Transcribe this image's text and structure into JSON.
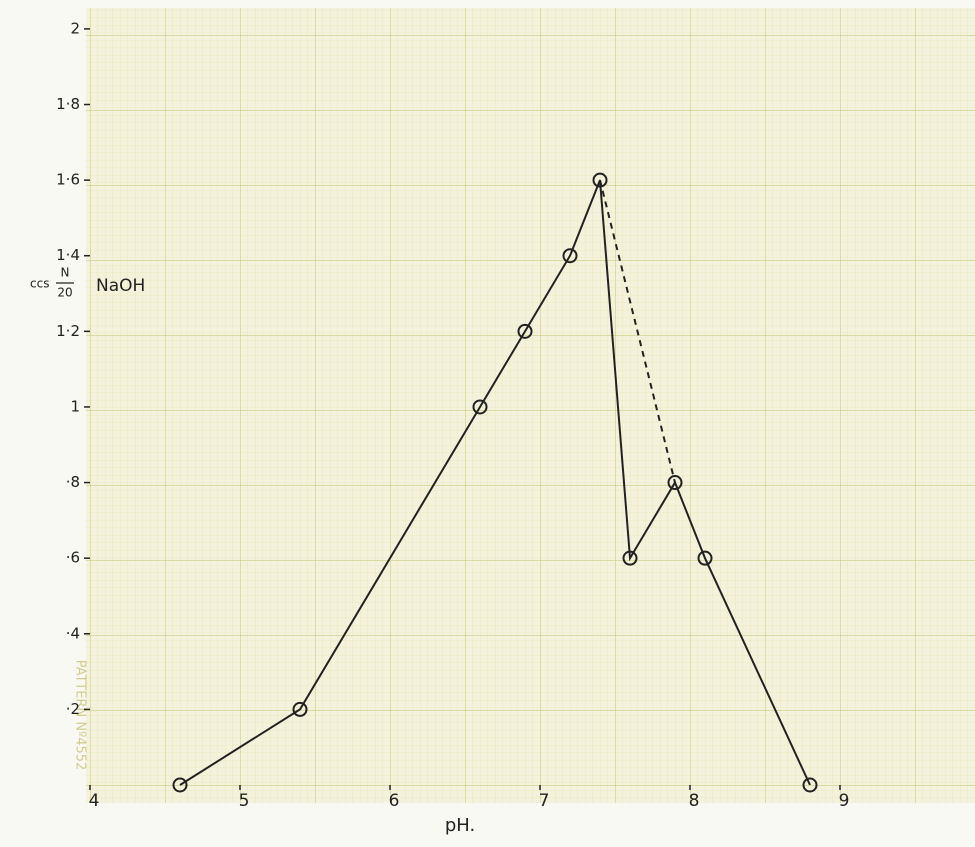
{
  "chart_data": {
    "type": "line",
    "x": [
      4.6,
      5.4,
      6.6,
      6.9,
      7.2,
      7.4,
      7.6,
      7.9,
      8.1,
      8.8
    ],
    "series": [
      {
        "values": [
          0,
          0.2,
          1.0,
          1.2,
          1.4,
          1.6,
          0.6,
          0.8,
          0.6,
          0
        ],
        "color": "#222222",
        "dash": false
      },
      {
        "x": [
          7.4,
          7.9
        ],
        "values": [
          1.6,
          0.8
        ],
        "color": "#222222",
        "dash": true
      }
    ],
    "xlabel": "pH.",
    "ylabel": {
      "prefix": "ccs",
      "numerator": "N",
      "denominator": "20",
      "unit": "NaOH"
    },
    "paper_mark": "PATTERN Nº4552",
    "xlim": [
      4,
      9.9
    ],
    "ylim": [
      0,
      2.05
    ],
    "xticks": [
      4,
      5,
      6,
      7,
      8,
      9
    ],
    "yticks": [
      {
        "value": 0.2,
        "label": "·2"
      },
      {
        "value": 0.4,
        "label": "·4"
      },
      {
        "value": 0.6,
        "label": "·6"
      },
      {
        "value": 0.8,
        "label": "·8"
      },
      1,
      {
        "value": 1.2,
        "label": "1·2"
      },
      {
        "value": 1.4,
        "label": "1·4"
      },
      {
        "value": 1.6,
        "label": "1·6"
      },
      {
        "value": 1.8,
        "label": "1·8"
      },
      2
    ],
    "grid": true
  }
}
